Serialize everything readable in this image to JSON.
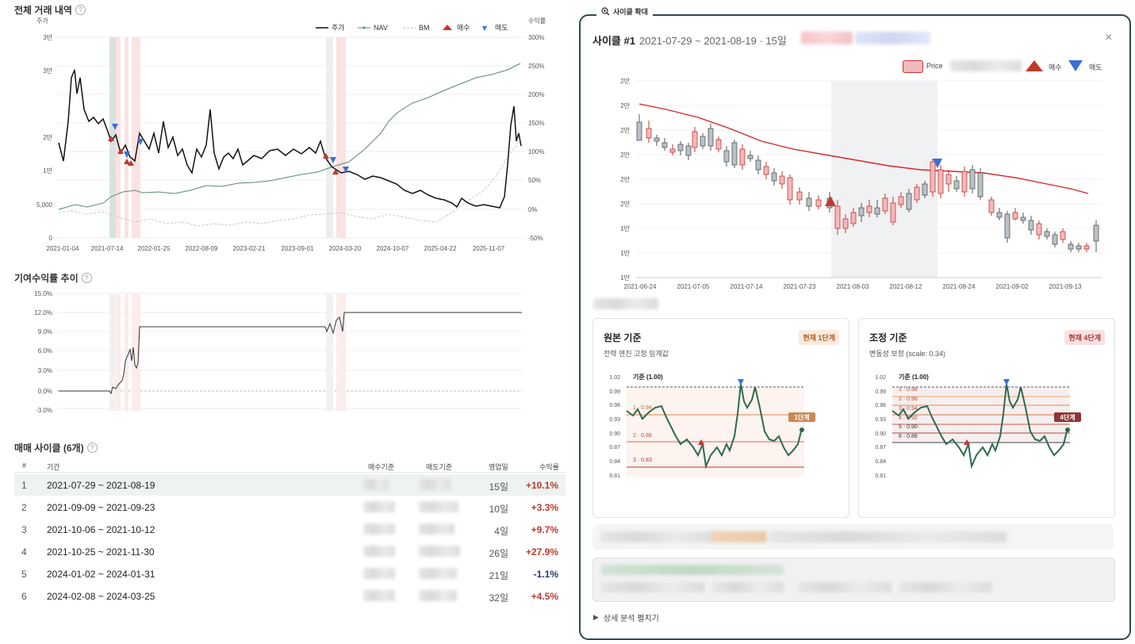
{
  "history": {
    "title": "전체 거래 내역",
    "left_axis_label": "주가",
    "right_axis_label": "수익률",
    "legend": [
      {
        "label": "주가",
        "color": "#111111"
      },
      {
        "label": "NAV",
        "color": "#5a8a6e"
      },
      {
        "label": "BM",
        "color": "#bbbbbb"
      },
      {
        "label": "매수",
        "color": "#c0392b"
      },
      {
        "label": "매도",
        "color": "#3b6fd8"
      }
    ],
    "y_left_ticks": [
      "3만",
      "3만",
      "2만",
      "2만",
      "1만",
      "5,000",
      "0"
    ],
    "y_right_ticks": [
      "300%",
      "250%",
      "200%",
      "150%",
      "100%",
      "50%",
      "0%",
      "-50%"
    ],
    "x_ticks": [
      "2021-01-04",
      "2021-07-14",
      "2022-01-25",
      "2022-08-09",
      "2023-02-21",
      "2023-09-01",
      "2024-03-20",
      "2024-10-07",
      "2025-04-22",
      "2025-11-07"
    ]
  },
  "contrib": {
    "title": "기여수익률 추이",
    "y_ticks": [
      "15.0%",
      "12.0%",
      "9.0%",
      "6.0%",
      "3.0%",
      "0.0%",
      "-3.0%"
    ]
  },
  "cycles": {
    "title": "매매 사이클 (6개)",
    "headers": {
      "num": "#",
      "period": "기간",
      "buy": "매수기준",
      "sell": "매도기준",
      "days": "영업일",
      "ret": "수익률"
    },
    "rows": [
      {
        "num": "1",
        "period": "2021-07-29 ~ 2021-08-19",
        "days": "15일",
        "ret": "+10.1%",
        "color": "#c0392b"
      },
      {
        "num": "2",
        "period": "2021-09-09 ~ 2021-09-23",
        "days": "10일",
        "ret": "+3.3%",
        "color": "#c0392b"
      },
      {
        "num": "3",
        "period": "2021-10-06 ~ 2021-10-12",
        "days": "4일",
        "ret": "+9.7%",
        "color": "#c0392b"
      },
      {
        "num": "4",
        "period": "2021-10-25 ~ 2021-11-30",
        "days": "26일",
        "ret": "+27.9%",
        "color": "#c0392b"
      },
      {
        "num": "5",
        "period": "2024-01-02 ~ 2024-01-31",
        "days": "21일",
        "ret": "-1.1%",
        "color": "#2b3a67"
      },
      {
        "num": "6",
        "period": "2024-02-08 ~ 2024-03-25",
        "days": "32일",
        "ret": "+4.5%",
        "color": "#c0392b"
      }
    ]
  },
  "zoom": {
    "tab_label": "사이클 확대",
    "title": "사이클 #1",
    "subtitle": "2021-07-29 ~ 2021-08-19 · 15일",
    "legend": {
      "price": "Price",
      "buy": "매수",
      "sell": "매도"
    },
    "y_ticks": [
      "2만",
      "2만",
      "2만",
      "2만",
      "2만",
      "2만",
      "1만",
      "1만",
      "1만"
    ],
    "x_ticks": [
      "2021-06-24",
      "2021-07-05",
      "2021-07-14",
      "2021-07-23",
      "2021-08-03",
      "2021-08-12",
      "2021-08-24",
      "2021-09-02",
      "2021-09-13"
    ],
    "expand_label": "상세 분석 펼치기"
  },
  "orig_card": {
    "title": "원본 기준",
    "badge": "현재 1단계",
    "desc": "전략 엔진 고정 임계값",
    "y_ticks": [
      "1.02",
      "0.99",
      "0.96",
      "0.93",
      "0.90",
      "0.87",
      "0.84",
      "0.81"
    ],
    "base_label": "기준 (1.00)",
    "levels": [
      "1 · 0.94",
      "2 · 0.88",
      "3 · 0.83"
    ],
    "end_tag": "1단계"
  },
  "adj_card": {
    "title": "조정 기준",
    "badge": "현재 4단계",
    "desc": "변동성 보정 (scale: 0.34)",
    "y_ticks": [
      "1.02",
      "0.99",
      "0.96",
      "0.93",
      "0.90",
      "0.87",
      "0.84",
      "0.81"
    ],
    "base_label": "기준 (1.00)",
    "levels": [
      "1 · 0.98",
      "2 · 0.96",
      "3 · 0.94",
      "4 · 0.92",
      "5 · 0.90",
      "6 · 0.88"
    ],
    "end_tag": "4단계"
  }
}
